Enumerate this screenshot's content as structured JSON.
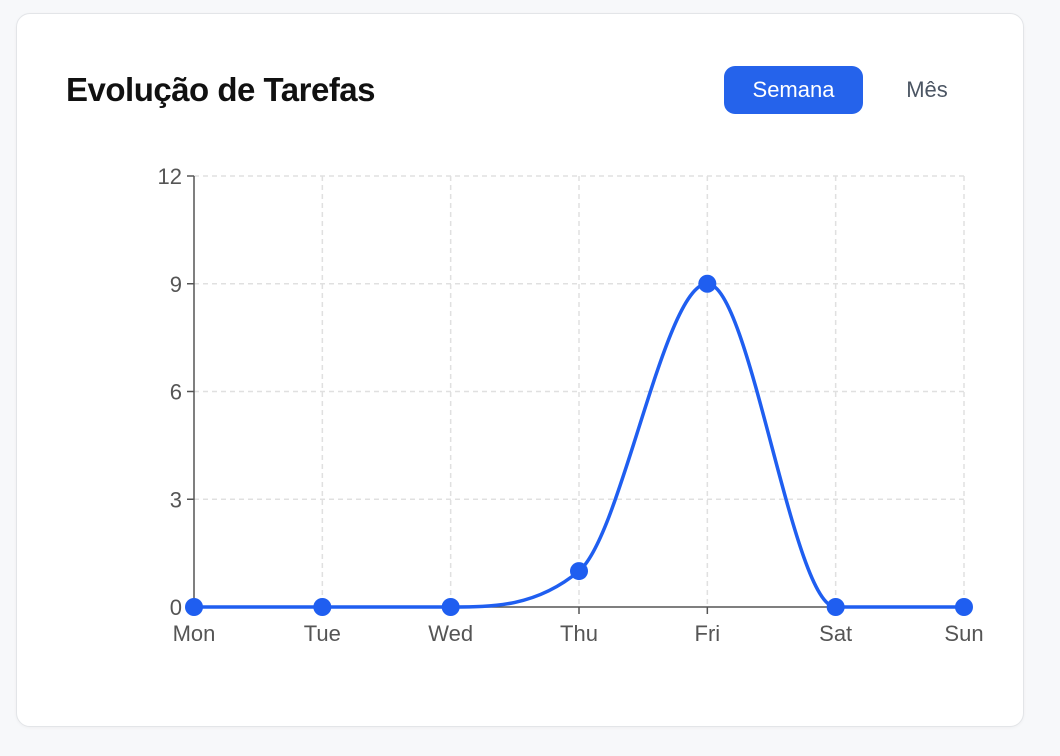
{
  "card": {
    "title": "Evolução de Tarefas"
  },
  "period_toggle": {
    "week_label": "Semana",
    "month_label": "Mês",
    "selected": "week"
  },
  "colors": {
    "accent": "#2563eb",
    "line": "#1f5ef0",
    "grid": "#e0e0e0",
    "axis": "#555555"
  },
  "chart_data": {
    "type": "line",
    "title": "",
    "xlabel": "",
    "ylabel": "",
    "categories": [
      "Mon",
      "Tue",
      "Wed",
      "Thu",
      "Fri",
      "Sat",
      "Sun"
    ],
    "series": [
      {
        "values": [
          0,
          0,
          0,
          1,
          9,
          0,
          0
        ]
      }
    ],
    "ylim": [
      0,
      12
    ],
    "yticks": [
      0,
      3,
      6,
      9,
      12
    ],
    "grid": true,
    "curve": "smooth",
    "markers": true,
    "legend": "none"
  }
}
